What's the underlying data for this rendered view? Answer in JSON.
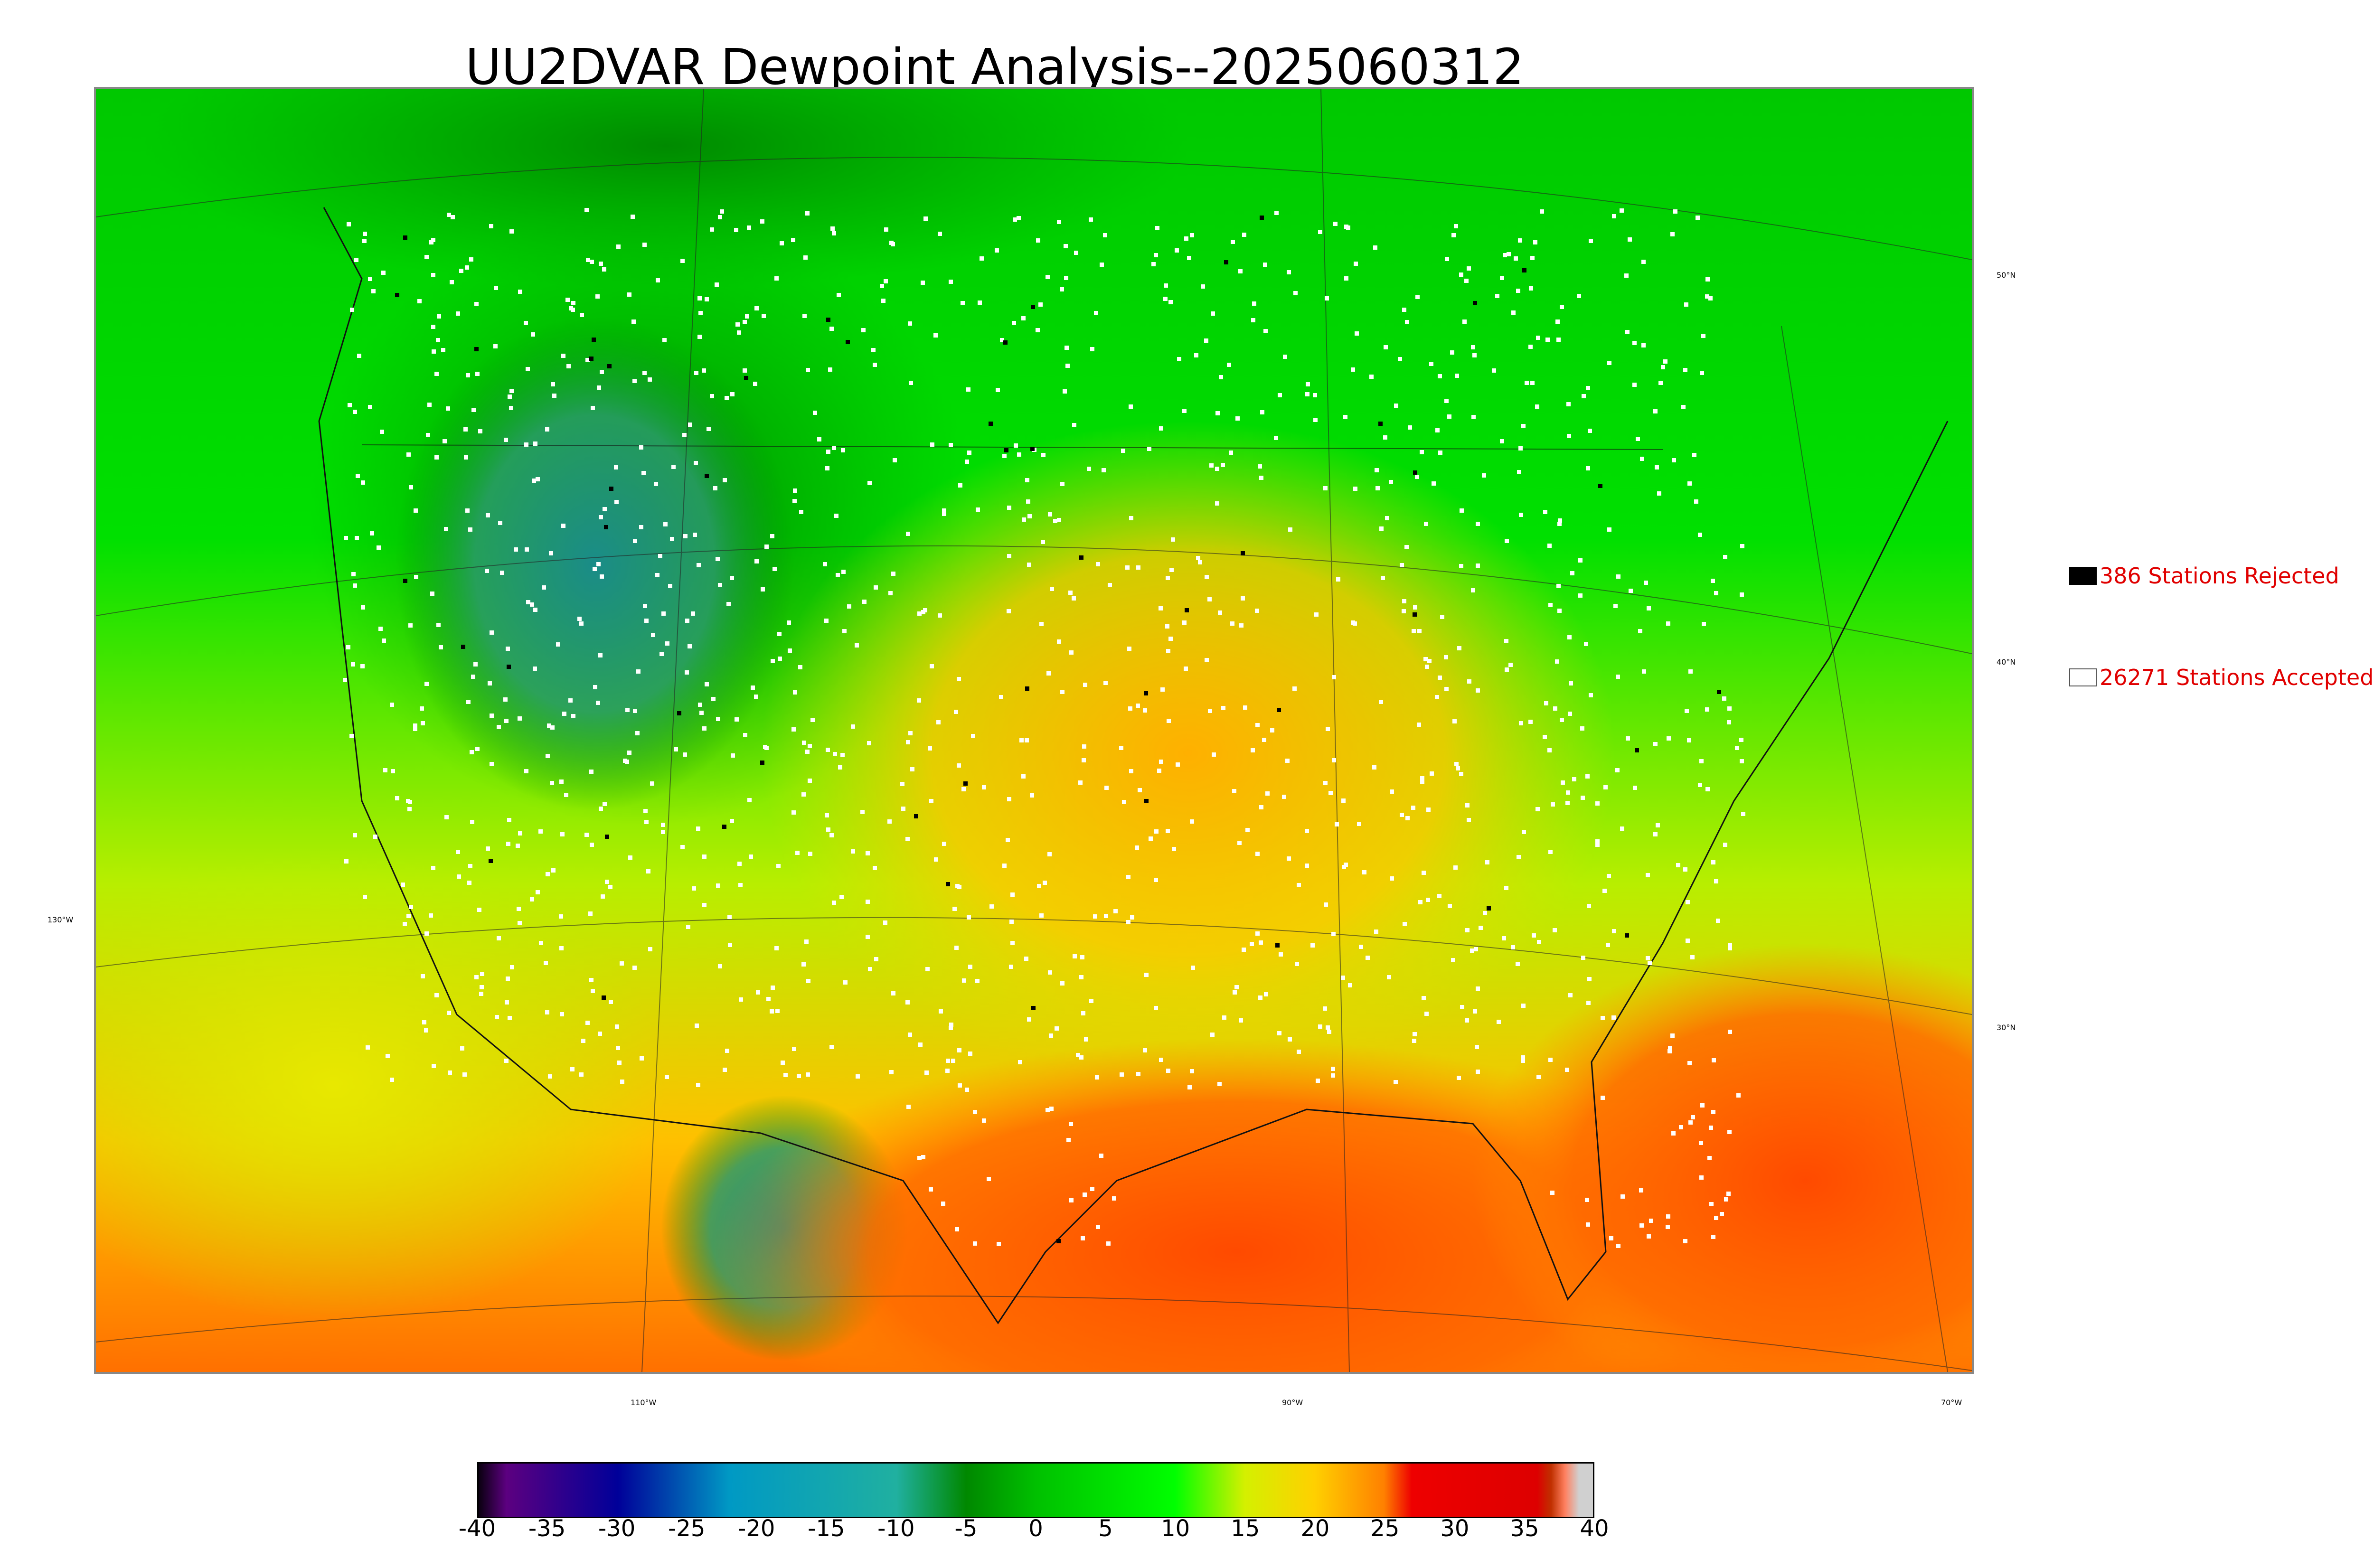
{
  "title": "UU2DVAR Dewpoint Analysis--2025060312",
  "legend": {
    "rejected": {
      "label": "386 Stations Rejected",
      "swatch_color": "#000000",
      "text_color": "#e00000"
    },
    "accepted": {
      "label": "26271 Stations Accepted",
      "swatch_color": "#ffffff",
      "text_color": "#e00000"
    }
  },
  "axis_labels": {
    "lat_50": "50°N",
    "lat_40": "40°N",
    "lat_30": "30°N",
    "lon_130": "130°W",
    "lon_110": "110°W",
    "lon_90": "90°W",
    "lon_70": "70°W"
  },
  "colorbar": {
    "min": -40,
    "max": 40,
    "ticks": [
      "-40",
      "-35",
      "-30",
      "-25",
      "-20",
      "-15",
      "-10",
      "-5",
      "0",
      "5",
      "10",
      "15",
      "20",
      "25",
      "30",
      "35",
      "40"
    ],
    "stops": [
      {
        "value": -40,
        "color": "#0a0010"
      },
      {
        "value": -38,
        "color": "#5c0080"
      },
      {
        "value": -30,
        "color": "#000099"
      },
      {
        "value": -22,
        "color": "#0099c4"
      },
      {
        "value": -10,
        "color": "#20b0a0"
      },
      {
        "value": -5,
        "color": "#008800"
      },
      {
        "value": 0,
        "color": "#00c000"
      },
      {
        "value": 10,
        "color": "#00ff00"
      },
      {
        "value": 15,
        "color": "#d4f000"
      },
      {
        "value": 20,
        "color": "#ffd000"
      },
      {
        "value": 25,
        "color": "#ff8000"
      },
      {
        "value": 27,
        "color": "#ee0000"
      },
      {
        "value": 36,
        "color": "#dd0000"
      },
      {
        "value": 37,
        "color": "#c03000"
      },
      {
        "value": 38,
        "color": "#ff8060"
      },
      {
        "value": 39,
        "color": "#d0d0d0"
      }
    ]
  }
}
